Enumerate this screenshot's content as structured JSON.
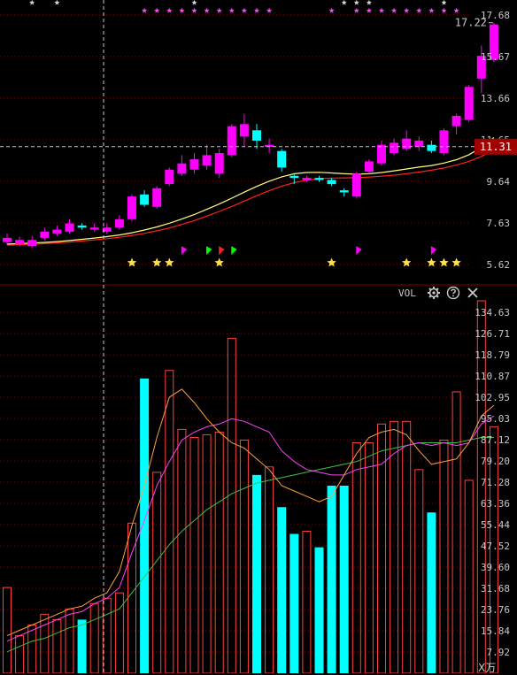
{
  "chart_data": [
    {
      "type": "candlestick",
      "panel": "price",
      "y_ticks": [
        "17.68",
        "15.67",
        "13.66",
        "11.65",
        "9.64",
        "7.63",
        "5.62"
      ],
      "ylim": [
        4.8,
        18.4
      ],
      "current_price": "11.31",
      "high_label": "17.22",
      "candles": [
        {
          "o": 6.7,
          "c": 6.9,
          "h": 7.1,
          "l": 6.55
        },
        {
          "o": 6.6,
          "c": 6.8,
          "h": 6.95,
          "l": 6.5
        },
        {
          "o": 6.5,
          "c": 6.8,
          "h": 7.0,
          "l": 6.4
        },
        {
          "o": 6.9,
          "c": 7.2,
          "h": 7.4,
          "l": 6.8
        },
        {
          "o": 7.1,
          "c": 7.3,
          "h": 7.5,
          "l": 7.0
        },
        {
          "o": 7.2,
          "c": 7.6,
          "h": 7.8,
          "l": 7.1
        },
        {
          "o": 7.5,
          "c": 7.4,
          "h": 7.6,
          "l": 7.3
        },
        {
          "o": 7.3,
          "c": 7.4,
          "h": 7.6,
          "l": 7.2
        },
        {
          "o": 7.2,
          "c": 7.4,
          "h": 7.6,
          "l": 7.1
        },
        {
          "o": 7.4,
          "c": 7.8,
          "h": 8.0,
          "l": 7.3
        },
        {
          "o": 7.8,
          "c": 8.9,
          "h": 9.0,
          "l": 7.7
        },
        {
          "o": 9.0,
          "c": 8.5,
          "h": 9.2,
          "l": 8.4
        },
        {
          "o": 8.4,
          "c": 9.3,
          "h": 9.4,
          "l": 8.3
        },
        {
          "o": 9.5,
          "c": 10.2,
          "h": 10.3,
          "l": 9.4
        },
        {
          "o": 10.0,
          "c": 10.5,
          "h": 10.9,
          "l": 9.9
        },
        {
          "o": 10.2,
          "c": 10.7,
          "h": 11.0,
          "l": 10.0
        },
        {
          "o": 10.4,
          "c": 10.9,
          "h": 11.4,
          "l": 10.2
        },
        {
          "o": 10.0,
          "c": 11.0,
          "h": 11.2,
          "l": 9.8
        },
        {
          "o": 10.9,
          "c": 12.3,
          "h": 12.4,
          "l": 10.8
        },
        {
          "o": 11.8,
          "c": 12.4,
          "h": 12.9,
          "l": 11.3
        },
        {
          "o": 12.1,
          "c": 11.6,
          "h": 12.4,
          "l": 11.2
        },
        {
          "o": 11.3,
          "c": 11.4,
          "h": 11.7,
          "l": 11.0
        },
        {
          "o": 11.1,
          "c": 10.3,
          "h": 11.2,
          "l": 10.1
        },
        {
          "o": 9.9,
          "c": 9.8,
          "h": 10.0,
          "l": 9.5
        },
        {
          "o": 9.7,
          "c": 9.8,
          "h": 9.9,
          "l": 9.6
        },
        {
          "o": 9.8,
          "c": 9.7,
          "h": 9.9,
          "l": 9.6
        },
        {
          "o": 9.7,
          "c": 9.5,
          "h": 9.8,
          "l": 9.4
        },
        {
          "o": 9.2,
          "c": 9.1,
          "h": 9.3,
          "l": 8.9
        },
        {
          "o": 8.9,
          "c": 10.0,
          "h": 10.1,
          "l": 8.8
        },
        {
          "o": 10.1,
          "c": 10.6,
          "h": 10.7,
          "l": 10.0
        },
        {
          "o": 10.5,
          "c": 11.4,
          "h": 11.6,
          "l": 10.4
        },
        {
          "o": 11.0,
          "c": 11.5,
          "h": 11.7,
          "l": 10.9
        },
        {
          "o": 11.2,
          "c": 11.7,
          "h": 12.1,
          "l": 11.1
        },
        {
          "o": 11.3,
          "c": 11.6,
          "h": 11.8,
          "l": 11.1
        },
        {
          "o": 11.4,
          "c": 11.1,
          "h": 11.6,
          "l": 11.0
        },
        {
          "o": 11.0,
          "c": 12.1,
          "h": 12.2,
          "l": 10.9
        },
        {
          "o": 12.3,
          "c": 12.8,
          "h": 12.9,
          "l": 11.9
        },
        {
          "o": 12.6,
          "c": 14.2,
          "h": 14.3,
          "l": 12.5
        },
        {
          "o": 14.6,
          "c": 15.7,
          "h": 16.2,
          "l": 13.9
        },
        {
          "o": 15.5,
          "c": 17.22,
          "h": 17.3,
          "l": 15.4
        }
      ],
      "ma_slow": [
        6.55,
        6.57,
        6.59,
        6.62,
        6.66,
        6.7,
        6.75,
        6.8,
        6.86,
        6.93,
        7.02,
        7.12,
        7.24,
        7.38,
        7.55,
        7.74,
        7.95,
        8.18,
        8.42,
        8.68,
        8.94,
        9.18,
        9.4,
        9.57,
        9.69,
        9.76,
        9.79,
        9.8,
        9.81,
        9.84,
        9.88,
        9.93,
        10.0,
        10.08,
        10.17,
        10.28,
        10.42,
        10.6,
        10.84,
        11.15
      ],
      "ma_fast": [
        6.6,
        6.62,
        6.65,
        6.68,
        6.72,
        6.77,
        6.83,
        6.89,
        6.96,
        7.04,
        7.15,
        7.28,
        7.43,
        7.61,
        7.81,
        8.03,
        8.28,
        8.54,
        8.82,
        9.11,
        9.39,
        9.64,
        9.85,
        10.0,
        10.06,
        10.07,
        10.04,
        10.0,
        9.98,
        10.0,
        10.06,
        10.14,
        10.23,
        10.32,
        10.4,
        10.52,
        10.68,
        10.92,
        11.27,
        11.75
      ],
      "star_marks": [
        10,
        12,
        13,
        17,
        26,
        32,
        34,
        35,
        36
      ],
      "flag_marks": [
        {
          "i": 14,
          "color": "#ff00ff"
        },
        {
          "i": 16,
          "color": "#00ff00"
        },
        {
          "i": 17,
          "color": "#ff2020"
        },
        {
          "i": 18,
          "color": "#00ff00"
        },
        {
          "i": 28,
          "color": "#ff00ff"
        },
        {
          "i": 34,
          "color": "#ff00ff"
        }
      ],
      "top_marks": {
        "magenta": [
          11,
          12,
          13,
          14,
          15,
          16,
          17,
          18,
          19,
          20,
          21,
          26,
          28,
          29,
          30,
          31,
          32,
          33,
          34,
          35,
          36
        ],
        "white": [
          2,
          4,
          15,
          27,
          28,
          29,
          35
        ]
      },
      "colors": {
        "up": "#ff00ff",
        "down": "#00ffff",
        "ma_fast": "#ffff80",
        "ma_slow": "#ff2020",
        "grid": "#800000",
        "axis": "#c8c8c8",
        "price_tag": "#a00000"
      }
    },
    {
      "type": "bar",
      "panel": "volume",
      "indicator_label": "VOL",
      "unit": "X万",
      "y_ticks": [
        "134.63",
        "126.71",
        "118.79",
        "110.87",
        "102.95",
        "95.03",
        "87.12",
        "79.20",
        "71.28",
        "63.36",
        "55.44",
        "47.52",
        "39.60",
        "31.68",
        "23.76",
        "15.84",
        "7.92"
      ],
      "ylim": [
        0,
        139
      ],
      "volumes": [
        32,
        14,
        18,
        22,
        20,
        24,
        20,
        26,
        28,
        30,
        56,
        110,
        75,
        113,
        91,
        88,
        89,
        90,
        125,
        87,
        74,
        77,
        62,
        52,
        53,
        47,
        70,
        70,
        86,
        86,
        93,
        94,
        94,
        76,
        60,
        87,
        105,
        72,
        139,
        92
      ],
      "ma5": [
        14,
        16,
        18,
        20,
        22,
        24,
        25,
        28,
        30,
        38,
        55,
        70,
        88,
        103,
        106,
        101,
        95,
        90,
        86,
        84,
        80,
        76,
        70,
        68,
        66,
        64,
        66,
        74,
        82,
        88,
        90,
        91,
        89,
        83,
        78,
        79,
        80,
        86,
        96,
        100
      ],
      "ma10": [
        12,
        14,
        16,
        18,
        20,
        22,
        23,
        26,
        28,
        32,
        45,
        57,
        70,
        79,
        87,
        90,
        92,
        93,
        95,
        94,
        92,
        90,
        83,
        79,
        76,
        75,
        74,
        74,
        76,
        77,
        78,
        82,
        85,
        86,
        85,
        86,
        85,
        86,
        93,
        96
      ],
      "ma20": [
        8,
        10,
        12,
        13,
        15,
        17,
        18,
        20,
        22,
        24,
        30,
        36,
        42,
        48,
        53,
        57,
        61,
        64,
        67,
        69,
        71,
        72,
        73,
        74,
        75,
        76,
        77,
        78,
        79,
        81,
        83,
        84,
        85,
        86,
        86,
        86,
        86,
        87,
        88,
        88
      ],
      "colors": {
        "up": "#ff4040",
        "down": "#00ffff",
        "ma5": "#ffa040",
        "ma10": "#ff40ff",
        "ma20": "#40c040",
        "grid": "#800000",
        "axis": "#c8c8c8"
      }
    }
  ],
  "vol_toolbar": {
    "settings_icon": "gear-icon",
    "help_icon": "question-icon",
    "close_icon": "close-icon"
  }
}
